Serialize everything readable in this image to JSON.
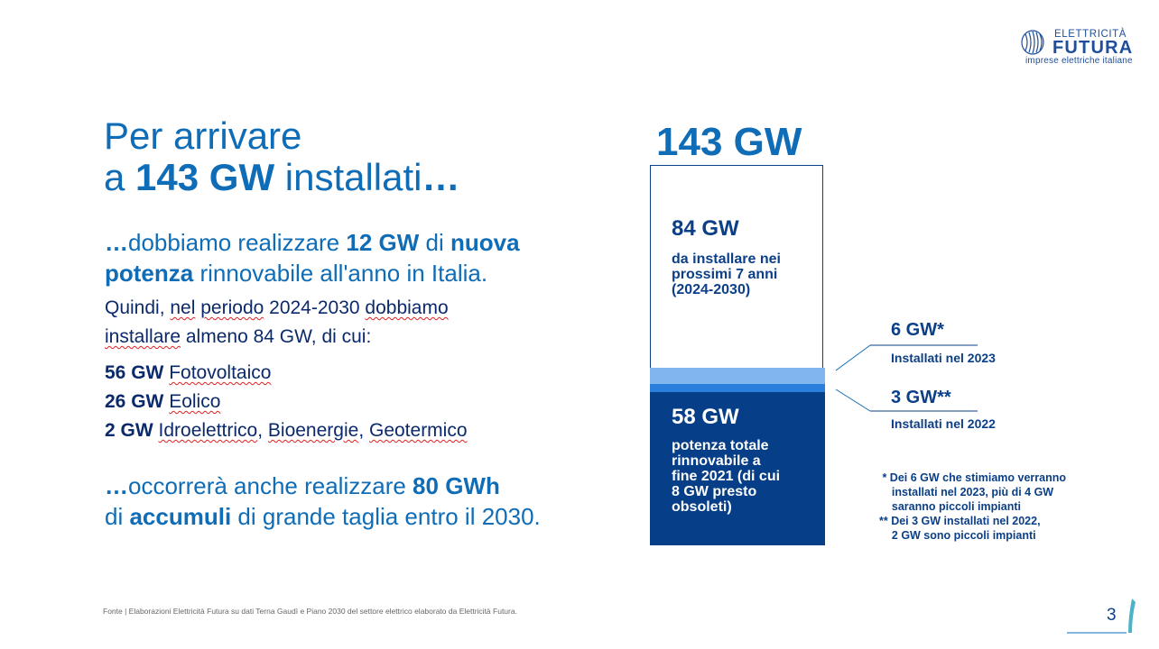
{
  "logo": {
    "top": "ELETTRICITÀ",
    "main": "FUTURA",
    "sub": "imprese elettriche italiane"
  },
  "title": {
    "line1": "Per arrivare",
    "line2_pre": "a ",
    "line2_bold": "143 GW",
    "line2_mid": " installati",
    "line2_end": "…"
  },
  "para1": {
    "lead": "…",
    "t1": "dobbiamo realizzare ",
    "b1": "12 GW",
    "t2": " di ",
    "b2": "nuova",
    "b3": "potenza",
    "t3": " rinnovabile all'anno in Italia."
  },
  "para2": {
    "l1a": "Quindi, ",
    "l1b": "nel",
    "l1c": " ",
    "l1d": "periodo",
    "l1e": " 2024-2030 ",
    "l1f": "dobbiamo",
    "l2a": "installare",
    "l2b": " almeno 84 GW, di cui:"
  },
  "list": [
    {
      "bold": "56 GW",
      "text": "Fotovoltaico"
    },
    {
      "bold": "26 GW",
      "text": "Eolico"
    },
    {
      "bold": "2 GW",
      "t1": "Idroelettrico",
      "sep1": ", ",
      "t2": "Bioenergie",
      "sep2": ", ",
      "t3": "Geotermico"
    }
  ],
  "para3": {
    "lead": "…",
    "t1": "occorrerà anche realizzare ",
    "b1": "80 GWh",
    "t2": "di ",
    "b2": "accumuli",
    "t3": " di grande taglia entro il 2030."
  },
  "chart": {
    "total": "143 GW",
    "block_top_value": "84 GW",
    "block_top_desc": [
      "da installare nei",
      "prossimi 7 anni",
      "(2024-2030)"
    ],
    "block_bottom_value": "58 GW",
    "block_bottom_desc": [
      "potenza totale",
      "rinnovabile a",
      "fine 2021 (di cui",
      "8 GW presto",
      "obsoleti)"
    ],
    "callout_2023_value": "6 GW*",
    "callout_2023_desc": "Installati nel 2023",
    "callout_2022_value": "3 GW**",
    "callout_2022_desc": "Installati nel 2022",
    "colors": {
      "top": "#ffffff",
      "light": "#7fb6f0",
      "mid": "#2a7fdc",
      "dark": "#063f87"
    }
  },
  "notes": [
    " * Dei 6 GW che stimiamo verranno",
    "    installati nel 2023, più di 4 GW",
    "    saranno piccoli impianti",
    "** Dei 3 GW installati nel 2022,",
    "    2 GW sono piccoli impianti"
  ],
  "source": "Fonte | Elaborazioni Elettricità Futura su dati Terna Gaudì e Piano 2030 del settore elettrico elaborato da Elettricità Futura.",
  "page_number": "3"
}
